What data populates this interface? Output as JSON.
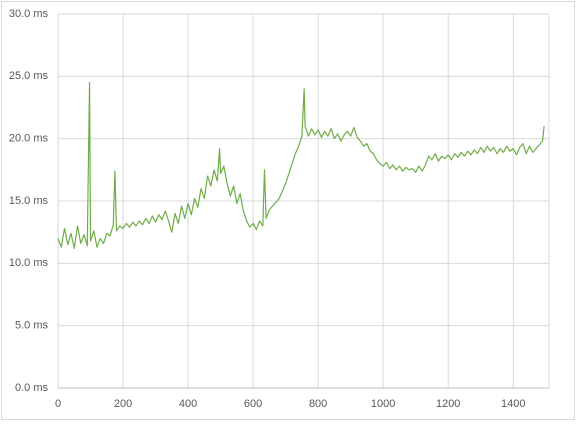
{
  "chart_data": {
    "type": "line",
    "x": [
      0,
      10,
      20,
      30,
      40,
      50,
      60,
      70,
      80,
      90,
      97,
      100,
      110,
      120,
      130,
      140,
      150,
      160,
      170,
      175,
      180,
      190,
      200,
      210,
      220,
      230,
      240,
      250,
      260,
      270,
      280,
      290,
      300,
      310,
      320,
      330,
      340,
      350,
      360,
      370,
      380,
      390,
      400,
      410,
      420,
      430,
      440,
      450,
      460,
      470,
      480,
      490,
      497,
      500,
      510,
      520,
      530,
      540,
      550,
      560,
      570,
      580,
      590,
      600,
      610,
      620,
      630,
      635,
      640,
      650,
      660,
      670,
      680,
      690,
      700,
      710,
      720,
      730,
      740,
      750,
      757,
      760,
      770,
      780,
      790,
      800,
      810,
      820,
      830,
      840,
      850,
      860,
      870,
      880,
      890,
      900,
      910,
      920,
      930,
      940,
      950,
      960,
      970,
      980,
      990,
      1000,
      1010,
      1020,
      1030,
      1040,
      1050,
      1060,
      1070,
      1080,
      1090,
      1100,
      1110,
      1120,
      1130,
      1140,
      1150,
      1160,
      1170,
      1180,
      1190,
      1200,
      1210,
      1220,
      1230,
      1240,
      1250,
      1260,
      1270,
      1280,
      1290,
      1300,
      1310,
      1320,
      1330,
      1340,
      1350,
      1360,
      1370,
      1380,
      1390,
      1400,
      1410,
      1420,
      1430,
      1440,
      1450,
      1460,
      1470,
      1480,
      1490,
      1495
    ],
    "series": [
      {
        "color": "#70ad47",
        "values": [
          12.0,
          11.3,
          12.8,
          11.5,
          12.4,
          11.2,
          13.0,
          11.6,
          12.3,
          11.4,
          24.5,
          11.8,
          12.6,
          11.3,
          12.0,
          11.6,
          12.4,
          12.2,
          13.1,
          17.4,
          12.6,
          13.0,
          12.8,
          13.2,
          12.9,
          13.3,
          13.0,
          13.4,
          13.1,
          13.6,
          13.2,
          13.8,
          13.3,
          13.9,
          13.5,
          14.2,
          13.4,
          12.5,
          14.0,
          13.2,
          14.6,
          13.6,
          14.8,
          13.9,
          15.2,
          14.5,
          16.0,
          15.2,
          17.0,
          16.2,
          17.5,
          16.6,
          19.2,
          17.2,
          17.8,
          16.4,
          15.4,
          16.2,
          14.8,
          15.6,
          14.2,
          13.4,
          12.9,
          13.2,
          12.7,
          13.4,
          13.0,
          17.5,
          13.6,
          14.3,
          14.6,
          14.9,
          15.2,
          15.8,
          16.4,
          17.2,
          18.0,
          18.8,
          19.4,
          20.2,
          24.0,
          21.0,
          20.2,
          20.8,
          20.3,
          20.7,
          20.1,
          20.6,
          20.2,
          20.8,
          20.0,
          20.4,
          19.8,
          20.3,
          20.6,
          20.2,
          20.9,
          20.1,
          19.8,
          19.4,
          19.6,
          19.0,
          18.8,
          18.3,
          18.0,
          17.8,
          18.1,
          17.6,
          17.9,
          17.5,
          17.8,
          17.4,
          17.7,
          17.5,
          17.6,
          17.3,
          17.8,
          17.4,
          17.9,
          18.6,
          18.3,
          18.8,
          18.2,
          18.6,
          18.4,
          18.7,
          18.3,
          18.8,
          18.5,
          18.9,
          18.6,
          19.0,
          18.7,
          19.1,
          18.8,
          19.3,
          18.9,
          19.4,
          19.0,
          19.3,
          18.8,
          19.2,
          18.9,
          19.4,
          19.0,
          19.2,
          18.7,
          19.3,
          19.6,
          18.8,
          19.4,
          18.9,
          19.2,
          19.5,
          19.8,
          21.0
        ]
      }
    ],
    "xlim": [
      0,
      1510
    ],
    "xticks": [
      0,
      200,
      400,
      600,
      800,
      1000,
      1200,
      1400
    ],
    "ylim": [
      0,
      30
    ],
    "yticks": [
      {
        "value": 0,
        "label": "0.0 ms"
      },
      {
        "value": 5,
        "label": "5.0 ms"
      },
      {
        "value": 10,
        "label": "10.0 ms"
      },
      {
        "value": 15,
        "label": "15.0 ms"
      },
      {
        "value": 20,
        "label": "20.0 ms"
      },
      {
        "value": 25,
        "label": "25.0 ms"
      },
      {
        "value": 30,
        "label": "30.0 ms"
      }
    ],
    "grid": true
  }
}
